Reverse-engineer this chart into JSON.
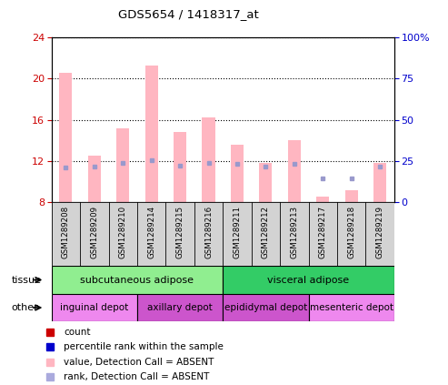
{
  "title": "GDS5654 / 1418317_at",
  "samples": [
    "GSM1289208",
    "GSM1289209",
    "GSM1289210",
    "GSM1289214",
    "GSM1289215",
    "GSM1289216",
    "GSM1289211",
    "GSM1289212",
    "GSM1289213",
    "GSM1289217",
    "GSM1289218",
    "GSM1289219"
  ],
  "bar_tops": [
    20.5,
    12.5,
    15.2,
    21.2,
    14.8,
    16.2,
    13.6,
    11.8,
    14.0,
    8.6,
    9.2,
    11.8
  ],
  "bar_bottom": 8,
  "rank_values": [
    11.4,
    11.5,
    11.8,
    12.1,
    11.6,
    11.8,
    11.7,
    11.5,
    11.7,
    10.3,
    10.35,
    11.5
  ],
  "ylim_left": [
    8,
    24
  ],
  "ylim_right": [
    0,
    100
  ],
  "yticks_left": [
    8,
    12,
    16,
    20,
    24
  ],
  "yticks_right": [
    0,
    25,
    50,
    75,
    100
  ],
  "ytick_labels_right": [
    "0",
    "25",
    "50",
    "75",
    "100%"
  ],
  "bar_color": "#FFB6C1",
  "rank_color": "#9999CC",
  "left_tick_color": "#CC0000",
  "right_tick_color": "#0000CC",
  "tissue_row": [
    {
      "label": "subcutaneous adipose",
      "start": 0,
      "end": 6,
      "color": "#90EE90"
    },
    {
      "label": "visceral adipose",
      "start": 6,
      "end": 12,
      "color": "#33CC66"
    }
  ],
  "other_row": [
    {
      "label": "inguinal depot",
      "start": 0,
      "end": 3,
      "color": "#EE88EE"
    },
    {
      "label": "axillary depot",
      "start": 3,
      "end": 6,
      "color": "#CC55CC"
    },
    {
      "label": "epididymal depot",
      "start": 6,
      "end": 9,
      "color": "#CC55CC"
    },
    {
      "label": "mesenteric depot",
      "start": 9,
      "end": 12,
      "color": "#EE88EE"
    }
  ],
  "legend_items": [
    {
      "label": "count",
      "color": "#CC0000"
    },
    {
      "label": "percentile rank within the sample",
      "color": "#0000CC"
    },
    {
      "label": "value, Detection Call = ABSENT",
      "color": "#FFB6C1"
    },
    {
      "label": "rank, Detection Call = ABSENT",
      "color": "#AAAADD"
    }
  ],
  "label_bg_color": "#D3D3D3",
  "plot_bg_color": "#FFFFFF",
  "fig_bg_color": "#FFFFFF"
}
